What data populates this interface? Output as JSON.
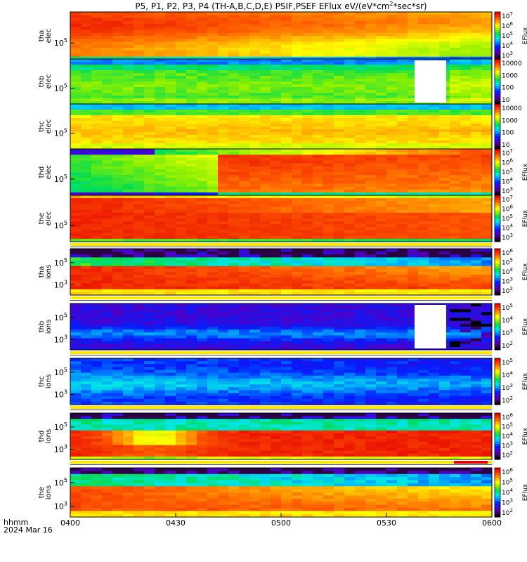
{
  "chart_data": {
    "type": "heatmap",
    "title": "P5, P1, P2, P3, P4 (TH-A,B,C,D,E) PSIF,PSEF EFlux eV/(eV*cm",
    "title_sup": "2",
    "title_end": "*sec*sr)",
    "x_tick_labels": [
      "0400",
      "0430",
      "0500",
      "0530",
      "0600"
    ],
    "x_ticks_minutes": [
      0,
      30,
      60,
      90,
      120
    ],
    "x_range_minutes": [
      0,
      120
    ],
    "x_footer_labels": [
      "hhmm",
      "2024 Mar 16"
    ],
    "colormap": "rainbow (black-purple-blue-cyan-green-yellow-orange-red)",
    "panels": [
      {
        "id": "tha-elec",
        "ylabel": [
          "tha",
          "elec"
        ],
        "y_ticks": [
          {
            "base": "10",
            "exp": "5"
          }
        ],
        "colorbar": {
          "labels": [
            {
              "b": "10",
              "e": "7"
            },
            {
              "b": "10",
              "e": "6"
            },
            {
              "b": "10",
              "e": "5"
            },
            {
              "b": "10",
              "e": "4"
            },
            {
              "b": "10",
              "e": "3"
            }
          ],
          "title": "EFlux"
        },
        "flag": "none"
      },
      {
        "id": "thb-elec",
        "ylabel": [
          "thb",
          "elec"
        ],
        "y_ticks": [
          {
            "base": "10",
            "exp": "5"
          }
        ],
        "colorbar": {
          "labels": [
            {
              "b": "10000",
              "e": ""
            },
            {
              "b": "1000",
              "e": ""
            },
            {
              "b": "100",
              "e": ""
            },
            {
              "b": "10",
              "e": ""
            }
          ],
          "title": ""
        },
        "data_gap_minutes": [
          98,
          107
        ],
        "flag": "none"
      },
      {
        "id": "thc-elec",
        "ylabel": [
          "thc",
          "elec"
        ],
        "y_ticks": [
          {
            "base": "10",
            "exp": "5"
          }
        ],
        "colorbar": {
          "labels": [
            {
              "b": "10000",
              "e": ""
            },
            {
              "b": "1000",
              "e": ""
            },
            {
              "b": "100",
              "e": ""
            },
            {
              "b": "10",
              "e": ""
            }
          ],
          "title": ""
        },
        "flag": "none"
      },
      {
        "id": "thd-elec",
        "ylabel": [
          "thd",
          "elec"
        ],
        "y_ticks": [
          {
            "base": "10",
            "exp": "5"
          }
        ],
        "colorbar": {
          "labels": [
            {
              "b": "10",
              "e": "7"
            },
            {
              "b": "10",
              "e": "6"
            },
            {
              "b": "10",
              "e": "5"
            },
            {
              "b": "10",
              "e": "4"
            },
            {
              "b": "10",
              "e": "3"
            }
          ],
          "title": "EFlux"
        },
        "flag": "none"
      },
      {
        "id": "the-elec",
        "ylabel": [
          "the",
          "elec"
        ],
        "y_ticks": [
          {
            "base": "10",
            "exp": "5"
          }
        ],
        "colorbar": {
          "labels": [
            {
              "b": "10",
              "e": "7"
            },
            {
              "b": "10",
              "e": "6"
            },
            {
              "b": "10",
              "e": "5"
            },
            {
              "b": "10",
              "e": "4"
            },
            {
              "b": "10",
              "e": "3"
            }
          ],
          "title": "EFlux"
        },
        "flag": "yellow"
      },
      {
        "id": "tha-ions",
        "ylabel": [
          "tha",
          "ions"
        ],
        "y_ticks": [
          {
            "base": "10",
            "exp": "5"
          },
          {
            "base": "10",
            "exp": "3"
          }
        ],
        "colorbar": {
          "labels": [
            {
              "b": "10",
              "e": "6"
            },
            {
              "b": "10",
              "e": "5"
            },
            {
              "b": "10",
              "e": "4"
            },
            {
              "b": "10",
              "e": "3"
            },
            {
              "b": "10",
              "e": "2"
            }
          ],
          "title": "EFlux"
        },
        "flag": "yellow"
      },
      {
        "id": "thb-ions",
        "ylabel": [
          "thb",
          "ions"
        ],
        "y_ticks": [
          {
            "base": "10",
            "exp": "5"
          },
          {
            "base": "10",
            "exp": "3"
          }
        ],
        "colorbar": {
          "labels": [
            {
              "b": "10",
              "e": "5"
            },
            {
              "b": "10",
              "e": "4"
            },
            {
              "b": "10",
              "e": "3"
            },
            {
              "b": "10",
              "e": "2"
            }
          ],
          "title": "EFlux"
        },
        "data_gap_minutes": [
          98,
          107
        ],
        "flag": "yellow"
      },
      {
        "id": "thc-ions",
        "ylabel": [
          "thc",
          "ions"
        ],
        "y_ticks": [
          {
            "base": "10",
            "exp": "5"
          },
          {
            "base": "10",
            "exp": "3"
          }
        ],
        "colorbar": {
          "labels": [
            {
              "b": "10",
              "e": "5"
            },
            {
              "b": "10",
              "e": "4"
            },
            {
              "b": "10",
              "e": "3"
            },
            {
              "b": "10",
              "e": "2"
            }
          ],
          "title": "EFlux"
        },
        "flag": "yellow"
      },
      {
        "id": "thd-ions",
        "ylabel": [
          "thd",
          "ions"
        ],
        "y_ticks": [
          {
            "base": "10",
            "exp": "5"
          },
          {
            "base": "10",
            "exp": "3"
          }
        ],
        "colorbar": {
          "labels": [
            {
              "b": "10",
              "e": "6"
            },
            {
              "b": "10",
              "e": "5"
            },
            {
              "b": "10",
              "e": "4"
            },
            {
              "b": "10",
              "e": "3"
            },
            {
              "b": "10",
              "e": "2"
            }
          ],
          "title": "EFlux"
        },
        "flag": "yellow-red"
      },
      {
        "id": "the-ions",
        "ylabel": [
          "the",
          "ions"
        ],
        "y_ticks": [
          {
            "base": "10",
            "exp": "5"
          },
          {
            "base": "10",
            "exp": "3"
          }
        ],
        "colorbar": {
          "labels": [
            {
              "b": "10",
              "e": "6"
            },
            {
              "b": "10",
              "e": "5"
            },
            {
              "b": "10",
              "e": "4"
            },
            {
              "b": "10",
              "e": "3"
            },
            {
              "b": "10",
              "e": "2"
            }
          ],
          "title": "EFlux"
        },
        "flag": "none"
      }
    ]
  }
}
